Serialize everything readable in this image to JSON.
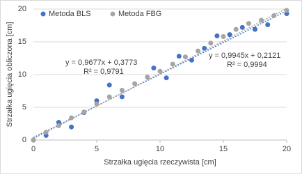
{
  "chart_data": {
    "type": "scatter",
    "x_label": "Strzałka ugięcia rzeczywista [cm]",
    "y_label": "Strzałka ugięcia obliczona [cm]",
    "xlim": [
      0,
      20
    ],
    "ylim": [
      0,
      20
    ],
    "xticks": [
      0,
      5,
      10,
      15,
      20
    ],
    "yticks": [
      0,
      5,
      10,
      15,
      20
    ],
    "grid": true,
    "legend": "top-left",
    "series": [
      {
        "name": "Metoda BLS",
        "color": "#4472c4",
        "x": [
          0,
          1,
          2,
          3,
          4,
          5,
          6,
          7,
          9.5,
          10.5,
          11.5,
          12.5,
          13.5,
          14.5,
          15.5,
          16.5,
          17.5,
          18.5,
          20
        ],
        "values": [
          0,
          0.7,
          2.7,
          2.0,
          4.2,
          6.0,
          8.4,
          6.6,
          11.0,
          9.5,
          12.8,
          12.2,
          14.0,
          15.9,
          16.1,
          17.2,
          16.9,
          17.6,
          19.3
        ],
        "trendline": {
          "slope": 0.9677,
          "intercept": 0.3773
        },
        "equation": "y = 0,9677x + 0,3773",
        "r2": "R² = 0,9791"
      },
      {
        "name": "Metoda FBG",
        "color": "#a5a5a5",
        "x": [
          0,
          1,
          2,
          3,
          4,
          5,
          6,
          7,
          8,
          9,
          10,
          11,
          12,
          13,
          14,
          15,
          16,
          17,
          18,
          19,
          20
        ],
        "values": [
          0,
          1.2,
          2.2,
          3.4,
          4.3,
          5.5,
          6.6,
          7.6,
          8.6,
          9.6,
          10.5,
          11.6,
          12.7,
          13.6,
          14.8,
          15.8,
          16.9,
          17.8,
          18.3,
          19.0,
          19.8
        ],
        "trendline": {
          "slope": 0.9945,
          "intercept": 0.2121
        },
        "equation": "y = 0,9945x + 0,2121",
        "r2": "R² = 0,9994"
      }
    ]
  }
}
